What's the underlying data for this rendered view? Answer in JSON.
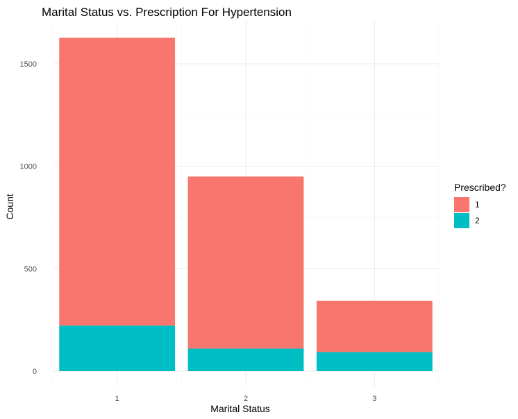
{
  "chart_data": {
    "type": "bar",
    "stacked": true,
    "title": "Marital Status vs. Prescription For Hypertension",
    "xlabel": "Marital Status",
    "ylabel": "Count",
    "categories": [
      "1",
      "2",
      "3"
    ],
    "y_ticks": [
      "0",
      "500",
      "1000",
      "1500"
    ],
    "ylim": [
      0,
      1700
    ],
    "grid": true,
    "legend": {
      "title": "Prescribed?",
      "placement": "right"
    },
    "series": [
      {
        "name": "1",
        "color": "#F8766D",
        "values": [
          1405,
          840,
          250
        ]
      },
      {
        "name": "2",
        "color": "#00BFC4",
        "values": [
          222,
          110,
          93
        ]
      }
    ]
  }
}
